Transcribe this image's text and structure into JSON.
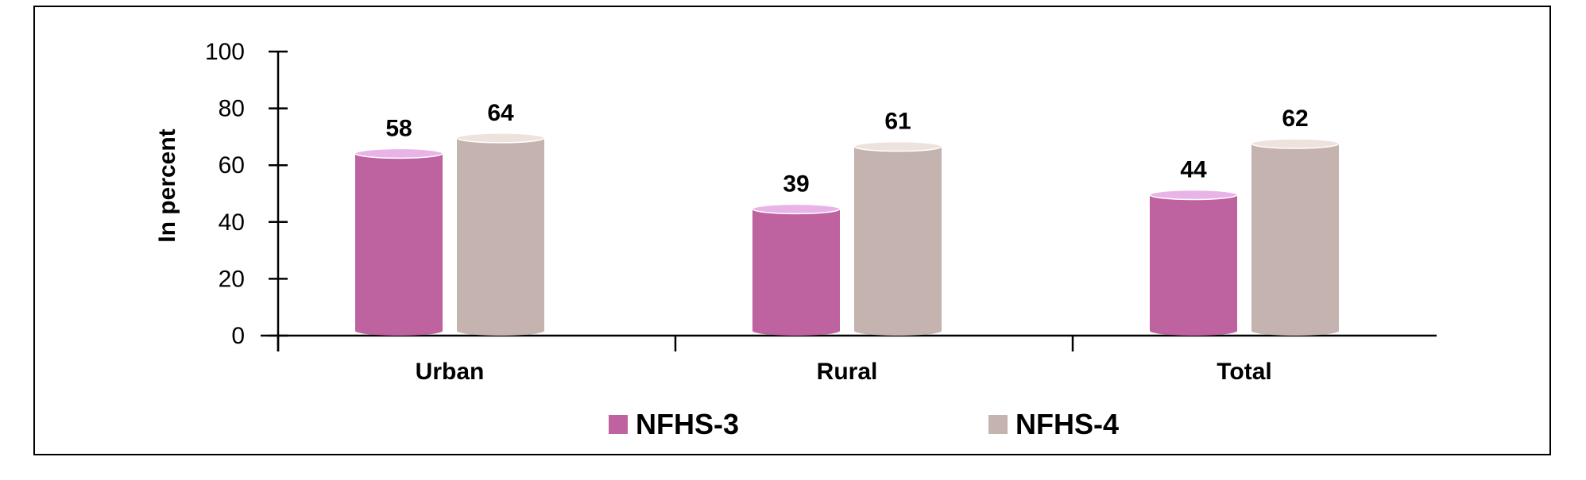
{
  "chart_data": {
    "type": "bar",
    "categories": [
      "Urban",
      "Rural",
      "Total"
    ],
    "series": [
      {
        "name": "NFHS-3",
        "values": [
          58,
          39,
          44
        ],
        "color": "#bf62a0",
        "top_color": "#e8b4e8"
      },
      {
        "name": "NFHS-4",
        "values": [
          64,
          61,
          62
        ],
        "color": "#c4b3af",
        "top_color": "#eee2dc"
      }
    ],
    "ylabel": "In percent",
    "ylim": [
      0,
      100
    ],
    "yticks": [
      0,
      20,
      40,
      60,
      80,
      100
    ],
    "grid": false,
    "legend": "bottom"
  }
}
